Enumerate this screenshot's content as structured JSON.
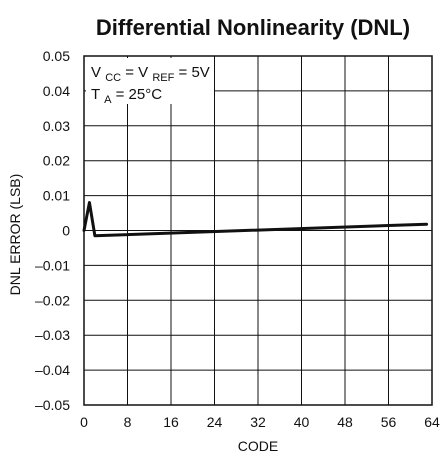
{
  "chart_data": {
    "type": "line",
    "title": "Differential Nonlinearity (DNL)",
    "xlabel": "CODE",
    "ylabel": "DNL ERROR (LSB)",
    "xlim": [
      0,
      64
    ],
    "ylim": [
      -0.05,
      0.05
    ],
    "xticks": [
      0,
      8,
      16,
      24,
      32,
      40,
      48,
      56,
      64
    ],
    "xtick_labels": [
      "0",
      "8",
      "16",
      "24",
      "32",
      "40",
      "48",
      "56",
      "64"
    ],
    "yticks": [
      0.05,
      0.04,
      0.03,
      0.02,
      0.01,
      0,
      -0.01,
      -0.02,
      -0.03,
      -0.04,
      -0.05
    ],
    "ytick_labels": [
      "0.05",
      "0.04",
      "0.03",
      "0.02",
      "0.01",
      "0",
      "–0.01",
      "–0.02",
      "–0.03",
      "–0.04",
      "–0.05"
    ],
    "grid": true,
    "series": [
      {
        "x": [
          0,
          1,
          2,
          63
        ],
        "values": [
          0.0,
          0.008,
          -0.0015,
          0.0018
        ]
      }
    ],
    "annotations": {
      "line1": {
        "base": "V",
        "sub1": "CC",
        "mid": " = V",
        "sub2": "REF",
        "tail": " = 5V"
      },
      "line2": {
        "base": "T",
        "sub": "A",
        "tail": " = 25°C"
      }
    }
  }
}
